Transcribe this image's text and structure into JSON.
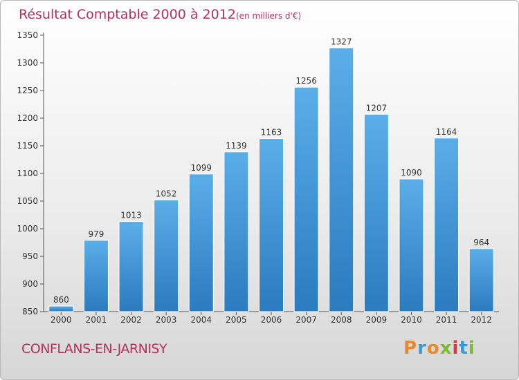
{
  "chart_data": {
    "type": "bar",
    "title": "Résultat Comptable 2000 à 2012",
    "subtitle": "(en milliers d'€)",
    "categories": [
      "2000",
      "2001",
      "2002",
      "2003",
      "2004",
      "2005",
      "2006",
      "2007",
      "2008",
      "2009",
      "2010",
      "2011",
      "2012"
    ],
    "values": [
      860,
      979,
      1013,
      1052,
      1099,
      1139,
      1163,
      1256,
      1327,
      1207,
      1090,
      1164,
      964
    ],
    "xlabel": "",
    "ylabel": "",
    "ylim": [
      850,
      1350
    ],
    "yticks": [
      850,
      900,
      950,
      1000,
      1050,
      1100,
      1150,
      1200,
      1250,
      1300,
      1350
    ],
    "grid": false,
    "bar_color": "#3d8fd4"
  },
  "footer": {
    "commune": "CONFLANS-EN-JARNISY",
    "brand": "Proxiti",
    "brand_colors": [
      "#e8882a",
      "#3a9ad9",
      "#e8882a",
      "#7dbb2e",
      "#d23b3b",
      "#3a9ad9",
      "#7dbb2e"
    ]
  }
}
